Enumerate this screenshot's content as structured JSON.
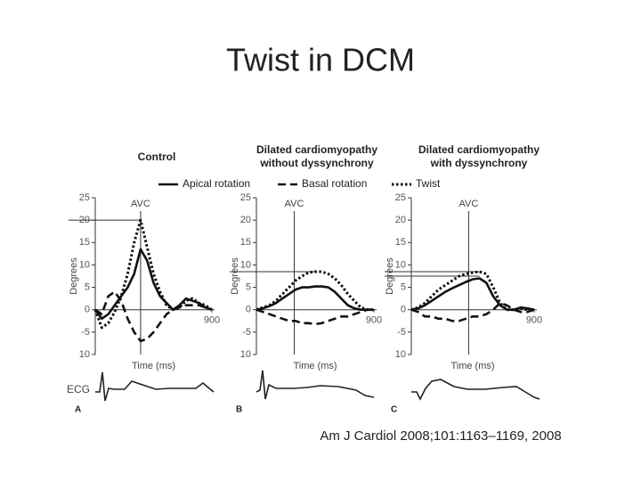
{
  "title": "Twist in DCM",
  "citation": "Am J Cardiol 2008;101:1163–1169, 2008",
  "legend": [
    {
      "name": "Apical rotation",
      "dash": "solid"
    },
    {
      "name": "Basal rotation",
      "dash": "dashed"
    },
    {
      "name": "Twist",
      "dash": "dotted"
    }
  ],
  "ecg_label": "ECG",
  "chart_data": [
    {
      "type": "line",
      "title": [
        "Control"
      ],
      "panel": "A",
      "xlabel": "Time (ms)",
      "ylabel": "Degrees",
      "x": [
        0,
        50,
        100,
        150,
        200,
        250,
        300,
        350,
        400,
        450,
        500,
        550,
        600,
        650,
        700,
        750,
        800,
        850,
        900
      ],
      "xlim": [
        0,
        900
      ],
      "xticks": [
        900
      ],
      "ylim": [
        -10,
        25
      ],
      "yticks": [
        25,
        20,
        15,
        10,
        5,
        0,
        -5,
        {
          "value": -10,
          "label": "10"
        }
      ],
      "annotation": {
        "label": "AVC",
        "x": 350
      },
      "reference_lines": [
        20
      ],
      "series": [
        {
          "dash": "solid",
          "values": [
            0,
            -2,
            -1,
            1,
            3,
            5,
            8,
            13.5,
            11,
            6,
            3,
            1.5,
            0,
            1,
            2.5,
            2,
            1.5,
            0.5,
            0
          ]
        },
        {
          "dash": "dashed",
          "values": [
            0,
            -1,
            3,
            4,
            2,
            -2,
            -5,
            -7,
            -6.5,
            -5,
            -3,
            -1,
            0,
            0.5,
            1,
            1,
            1,
            0.5,
            0
          ]
        },
        {
          "dash": "dotted",
          "values": [
            0,
            -4,
            -3,
            -0.5,
            3,
            8,
            15,
            20,
            14,
            8,
            4,
            1,
            0,
            0.5,
            2,
            2.5,
            1.5,
            1,
            0
          ]
        }
      ]
    },
    {
      "type": "line",
      "title": [
        "Dilated cardiomyopathy",
        "without dyssynchrony"
      ],
      "panel": "B",
      "xlabel": "Time (ms)",
      "ylabel": "Degrees",
      "x": [
        0,
        50,
        100,
        150,
        200,
        250,
        300,
        350,
        400,
        450,
        500,
        550,
        600,
        650,
        700,
        750,
        800,
        850,
        900
      ],
      "xlim": [
        0,
        900
      ],
      "xticks": [
        900
      ],
      "ylim": [
        -10,
        25
      ],
      "yticks": [
        25,
        20,
        15,
        10,
        5,
        0,
        -5,
        {
          "value": -10,
          "label": "10"
        }
      ],
      "annotation": {
        "label": "AVC",
        "x": 290
      },
      "reference_lines": [
        8.5
      ],
      "series": [
        {
          "dash": "solid",
          "values": [
            0,
            0.3,
            0.8,
            1.5,
            2.5,
            3.5,
            4.5,
            5,
            5,
            5.2,
            5.2,
            5,
            4,
            2.5,
            1,
            0.3,
            0,
            0,
            0
          ]
        },
        {
          "dash": "dashed",
          "values": [
            0,
            -0.5,
            -1,
            -1.5,
            -2,
            -2.5,
            -2.5,
            -3,
            -3,
            -3.2,
            -3,
            -2.5,
            -2,
            -1.5,
            -1.5,
            -1,
            -0.5,
            0,
            0
          ]
        },
        {
          "dash": "dotted",
          "values": [
            0,
            0.5,
            1,
            2,
            3.5,
            5,
            6.5,
            7.5,
            8.3,
            8.5,
            8.5,
            8,
            7,
            5.5,
            3.5,
            2,
            0.5,
            0,
            0
          ]
        }
      ]
    },
    {
      "type": "line",
      "title": [
        "Dilated cardiomyopathy",
        "with dyssynchrony"
      ],
      "panel": "C",
      "xlabel": "Time (ms)",
      "ylabel": "Degrees",
      "x": [
        0,
        50,
        100,
        150,
        200,
        250,
        300,
        350,
        400,
        450,
        500,
        550,
        600,
        650,
        700,
        750,
        800,
        850,
        900
      ],
      "xlim": [
        0,
        900
      ],
      "xticks": [
        900
      ],
      "ylim": [
        -10,
        25
      ],
      "yticks": [
        25,
        20,
        15,
        10,
        5,
        0,
        -5,
        {
          "value": -10,
          "label": "10"
        }
      ],
      "annotation": {
        "label": "AVC",
        "x": 420
      },
      "reference_lines": [
        8.5,
        7.5
      ],
      "series": [
        {
          "dash": "solid",
          "values": [
            0,
            0.3,
            1,
            2,
            3,
            4,
            4.8,
            5.5,
            6.2,
            6.8,
            7,
            6,
            3,
            1,
            0,
            0,
            0.5,
            0.3,
            0
          ]
        },
        {
          "dash": "dashed",
          "values": [
            0,
            -0.5,
            -1.5,
            -1.5,
            -2,
            -2,
            -2.5,
            -2.5,
            -2,
            -1.5,
            -1.5,
            -1,
            0,
            1.5,
            1,
            0,
            -0.5,
            -0.5,
            0
          ]
        },
        {
          "dash": "dotted",
          "values": [
            0,
            0.5,
            1.5,
            3,
            4.5,
            5.5,
            6.5,
            7.5,
            8,
            8.3,
            8.5,
            8,
            5,
            1.5,
            0,
            0,
            0.3,
            0,
            0
          ]
        }
      ]
    }
  ]
}
